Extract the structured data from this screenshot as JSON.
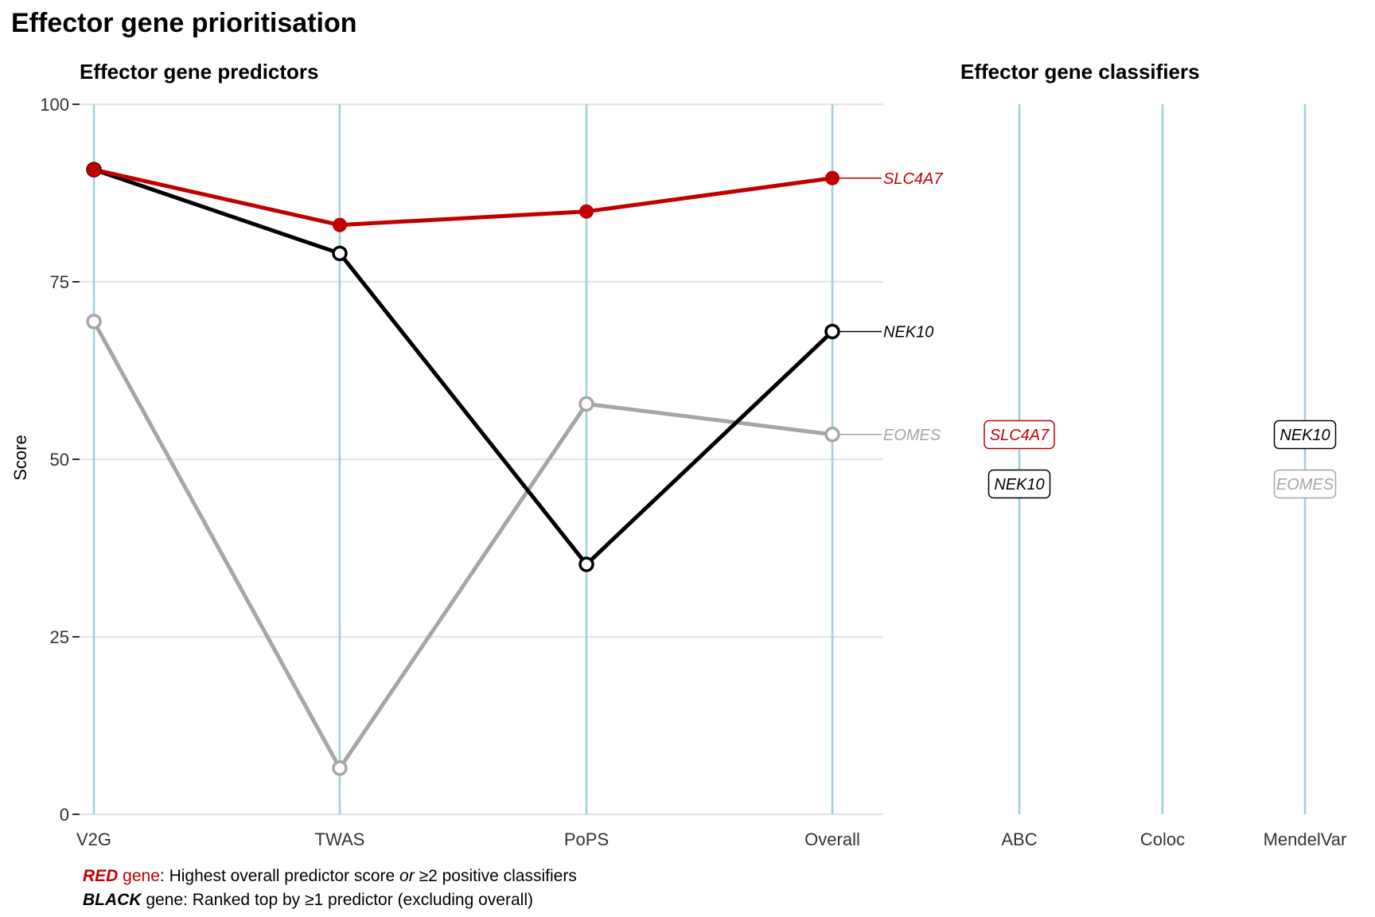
{
  "header": {
    "title": "Effector gene prioritisation",
    "left_subtitle": "Effector gene predictors",
    "right_subtitle": "Effector gene classifiers",
    "ylabel": "Score"
  },
  "colors": {
    "red": "#c00000",
    "black": "#000000",
    "grey": "#a6a6a6",
    "axis_line": "#9cd0de",
    "grid": "#e6e6e6"
  },
  "chart_data": [
    {
      "type": "line",
      "title": "Effector gene predictors",
      "xlabel": "",
      "ylabel": "Score",
      "categories": [
        "V2G",
        "TWAS",
        "PoPS",
        "Overall"
      ],
      "ylim": [
        0,
        100
      ],
      "yticks": [
        0,
        25,
        50,
        75,
        100
      ],
      "grid": true,
      "series": [
        {
          "name": "SLC4A7",
          "color": "#c00000",
          "filled": true,
          "values": [
            90.8,
            83.0,
            84.9,
            89.6
          ]
        },
        {
          "name": "NEK10",
          "color": "#000000",
          "filled": false,
          "values": [
            90.8,
            79.0,
            35.2,
            68.0
          ]
        },
        {
          "name": "EOMES",
          "color": "#a6a6a6",
          "filled": false,
          "values": [
            69.4,
            6.5,
            57.8,
            53.5
          ]
        }
      ]
    },
    {
      "type": "table",
      "title": "Effector gene classifiers",
      "categories": [
        "ABC",
        "Coloc",
        "MendelVar"
      ],
      "entries": [
        {
          "classifier": "ABC",
          "gene": "SLC4A7",
          "color": "#c00000"
        },
        {
          "classifier": "ABC",
          "gene": "NEK10",
          "color": "#000000"
        },
        {
          "classifier": "MendelVar",
          "gene": "NEK10",
          "color": "#000000"
        },
        {
          "classifier": "MendelVar",
          "gene": "EOMES",
          "color": "#a6a6a6"
        }
      ]
    }
  ],
  "footer": {
    "line1": {
      "key": "RED",
      "key_suffix": " gene",
      "text_a": ": Highest overall predictor score ",
      "text_or": "or",
      "text_b": " ≥2 positive classifiers"
    },
    "line2": {
      "key": "BLACK",
      "key_suffix": " gene",
      "text": ": Ranked top by ≥1 predictor (excluding overall)"
    }
  }
}
